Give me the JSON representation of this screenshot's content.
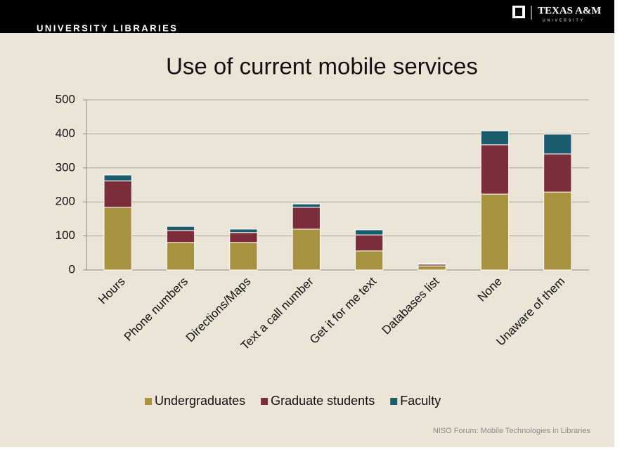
{
  "header": {
    "org": "UNIVERSITY LIBRARIES",
    "logo_name": "TEXAS A&M",
    "logo_sub": "UNIVERSITY"
  },
  "footer": "NISO Forum:  Mobile Technologies in Libraries",
  "chart_data": {
    "type": "stacked_bar",
    "title": "Use of current mobile services",
    "categories": [
      "Hours",
      "Phone numbers",
      "Directions/Maps",
      "Text a call number",
      "Get it for me text",
      "Databases list",
      "None",
      "Unaware of them"
    ],
    "series": [
      {
        "name": "Undergraduates",
        "color": "#a8913f",
        "values": [
          184,
          81,
          81,
          120,
          56,
          12,
          223,
          229
        ]
      },
      {
        "name": "Graduate students",
        "color": "#7b2d3a",
        "values": [
          78,
          35,
          29,
          64,
          47,
          5,
          145,
          112
        ]
      },
      {
        "name": "Faculty",
        "color": "#1c5a6e",
        "values": [
          17,
          12,
          10,
          10,
          15,
          2,
          41,
          58
        ]
      }
    ],
    "ylim": [
      0,
      500
    ],
    "yticks": [
      0,
      100,
      200,
      300,
      400,
      500
    ],
    "grid": true,
    "legend": "bottom"
  }
}
